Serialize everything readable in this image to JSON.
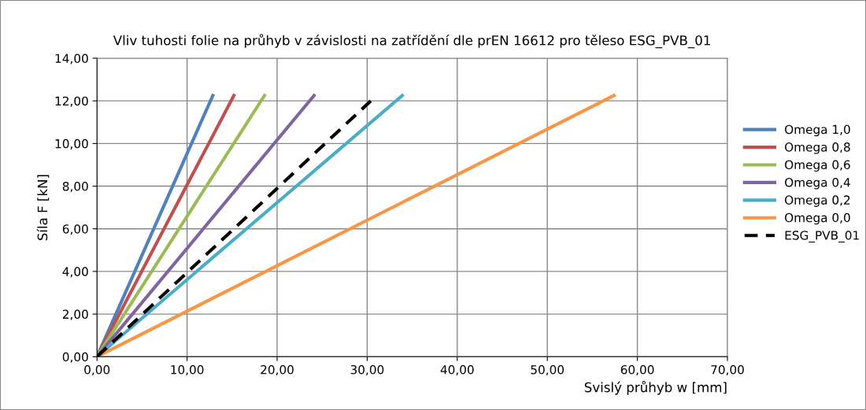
{
  "chart_data": {
    "type": "line",
    "title": "Vliv tuhosti folie na průhyb v závislosti na zatřídění dle prEN 16612 pro těleso ESG_PVB_01",
    "xlabel": "Svislý průhyb w [mm]",
    "ylabel": "Síla F [kN]",
    "series": [
      {
        "name": "Omega 1,0",
        "color": "#4f81bd",
        "x": [
          0,
          12.86
        ],
        "values": [
          0,
          12.25
        ]
      },
      {
        "name": "Omega 0,8",
        "color": "#c0504d",
        "x": [
          0,
          15.2
        ],
        "values": [
          0,
          12.25
        ]
      },
      {
        "name": "Omega 0,6",
        "color": "#9bbb59",
        "x": [
          0,
          18.6
        ],
        "values": [
          0,
          12.25
        ]
      },
      {
        "name": "Omega 0,4",
        "color": "#8064a2",
        "x": [
          0,
          24.1
        ],
        "values": [
          0,
          12.25
        ]
      },
      {
        "name": "Omega 0,2",
        "color": "#4bacc6",
        "x": [
          0,
          33.9
        ],
        "values": [
          0,
          12.25
        ]
      },
      {
        "name": "Omega 0,0",
        "color": "#f79646",
        "x": [
          0,
          57.4
        ],
        "values": [
          0,
          12.25
        ]
      },
      {
        "name": "ESG_PVB_01",
        "color": "#000000",
        "x": [
          0,
          30.4
        ],
        "values": [
          0,
          12.0
        ],
        "line_style": "dashed"
      }
    ],
    "xlim": [
      0,
      70
    ],
    "ylim": [
      0,
      14
    ],
    "xticks": [
      {
        "value": 0,
        "label": "0,00"
      },
      {
        "value": 10,
        "label": "10,00"
      },
      {
        "value": 20,
        "label": "20,00"
      },
      {
        "value": 30,
        "label": "30,00"
      },
      {
        "value": 40,
        "label": "40,00"
      },
      {
        "value": 50,
        "label": "50,00"
      },
      {
        "value": 60,
        "label": "60,00"
      },
      {
        "value": 70,
        "label": "70,00"
      }
    ],
    "yticks": [
      {
        "value": 0,
        "label": "0,00"
      },
      {
        "value": 2,
        "label": "2,00"
      },
      {
        "value": 4,
        "label": "4,00"
      },
      {
        "value": 6,
        "label": "6,00"
      },
      {
        "value": 8,
        "label": "8,00"
      },
      {
        "value": 10,
        "label": "10,00"
      },
      {
        "value": 12,
        "label": "12,00"
      },
      {
        "value": 14,
        "label": "14,00"
      }
    ],
    "grid": true,
    "legend": "right",
    "marker": "none",
    "line_style": "solid"
  }
}
